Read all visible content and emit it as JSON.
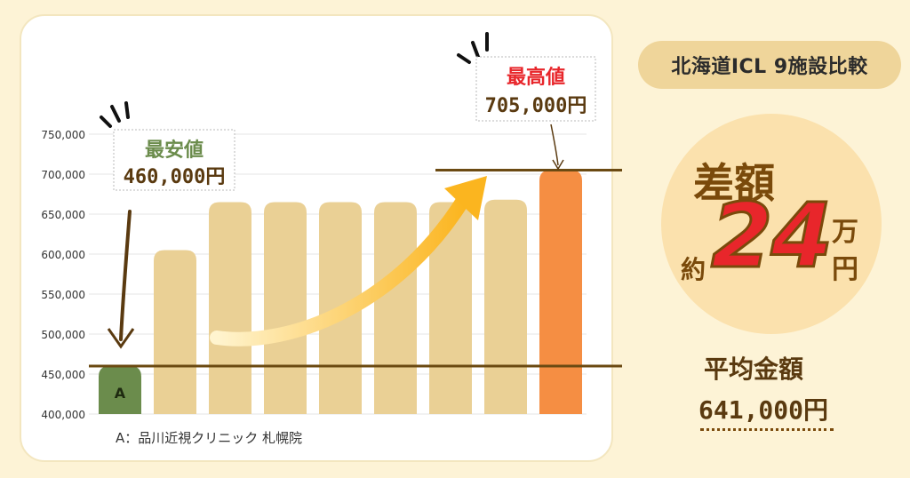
{
  "title": "北海道ICL 9施設比較",
  "difference": {
    "label": "差額",
    "prefix": "約",
    "value": "24",
    "unit_top": "万",
    "unit_bottom": "円"
  },
  "average": {
    "label": "平均金額",
    "value": "641,000円"
  },
  "callouts": {
    "lowest_label": "最安値",
    "lowest_value": "460,000円",
    "highest_label": "最高値",
    "highest_value": "705,000円"
  },
  "footnote": "A：品川近視クリニック 札幌院",
  "colors": {
    "bar": "#ead095",
    "lowest": "#6b8c4c",
    "highest": "#f58e43",
    "reference_line": "#6b4a12",
    "lowest_text": "#6b8c4c",
    "highest_text": "#e8262b"
  },
  "chart_data": {
    "type": "bar",
    "categories": [
      "A",
      "",
      "",
      "",
      "",
      "",
      "",
      "",
      ""
    ],
    "values": [
      460000,
      605000,
      665000,
      665000,
      665000,
      665000,
      665000,
      668000,
      705000
    ],
    "ylim": [
      400000,
      750000
    ],
    "yticks": [
      "400,000",
      "450,000",
      "500,000",
      "550,000",
      "600,000",
      "650,000",
      "700,000",
      "750,000"
    ],
    "ytick_values": [
      400000,
      450000,
      500000,
      550000,
      600000,
      650000,
      700000,
      750000
    ],
    "grid": true,
    "legend": "none"
  }
}
